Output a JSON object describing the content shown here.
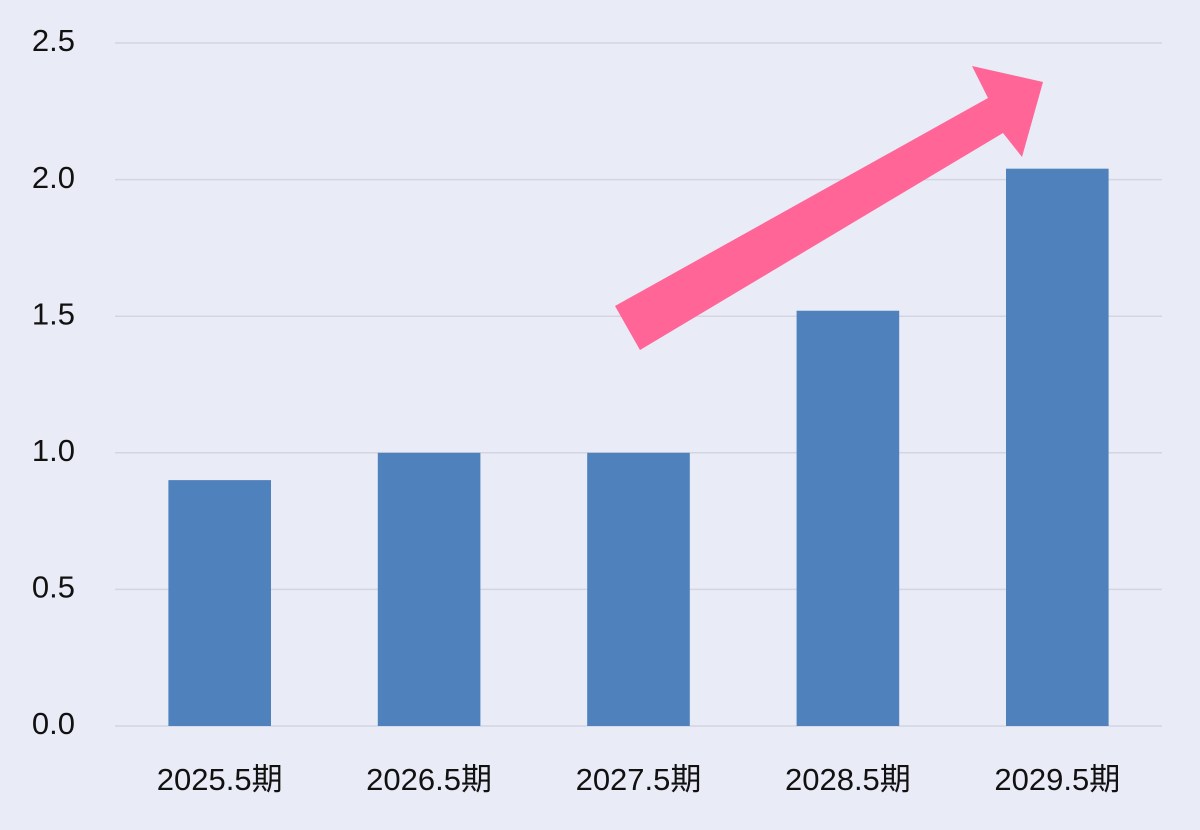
{
  "chart_data": {
    "type": "bar",
    "categories": [
      "2025.5期",
      "2026.5期",
      "2027.5期",
      "2028.5期",
      "2029.5期"
    ],
    "values": [
      0.9,
      1.0,
      1.0,
      1.52,
      2.04
    ],
    "color": "#4f81bd",
    "ylim": [
      0,
      2.5
    ],
    "yticks": [
      {
        "value": 0,
        "label": "0.0"
      },
      0.5,
      {
        "value": 1,
        "label": "1.0"
      },
      1.5,
      {
        "value": 2,
        "label": "2.0"
      },
      2.5
    ],
    "grid": true
  }
}
